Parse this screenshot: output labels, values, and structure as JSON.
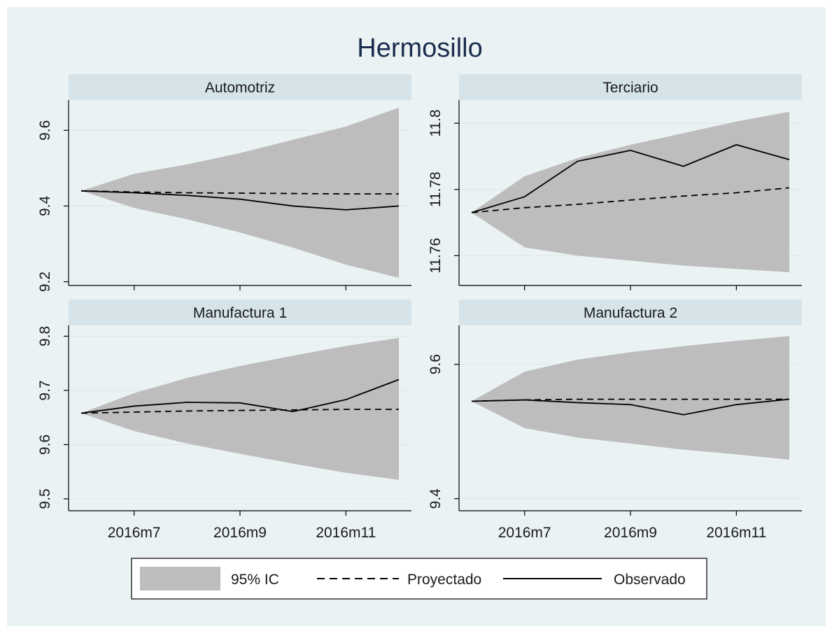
{
  "title": "Hermosillo",
  "colors": {
    "background": "#eaf2f3",
    "strip": "#d6e4ea",
    "band": "#bdbdbd",
    "grid": "#dfe7ea",
    "line": "#000000",
    "title": "#1a2d4f"
  },
  "chart_data": [
    {
      "type": "line",
      "panel": "Automotriz",
      "x": [
        "2016m6",
        "2016m7",
        "2016m8",
        "2016m9",
        "2016m10",
        "2016m11",
        "2016m12"
      ],
      "x_ticks": [
        "2016m7",
        "2016m9",
        "2016m11"
      ],
      "y_ticks": [
        "9.2",
        "9.4",
        "9.6"
      ],
      "ylim": [
        9.19,
        9.68
      ],
      "series": [
        {
          "name": "95% IC",
          "kind": "band",
          "lower": [
            9.44,
            9.395,
            9.365,
            9.33,
            9.29,
            9.245,
            9.21
          ],
          "upper": [
            9.44,
            9.485,
            9.51,
            9.54,
            9.575,
            9.61,
            9.66
          ]
        },
        {
          "name": "Proyectado",
          "kind": "dashed",
          "values": [
            9.44,
            9.437,
            9.435,
            9.434,
            9.433,
            9.432,
            9.432
          ]
        },
        {
          "name": "Observado",
          "kind": "solid",
          "values": [
            9.44,
            9.435,
            9.428,
            9.418,
            9.4,
            9.39,
            9.4
          ]
        }
      ]
    },
    {
      "type": "line",
      "panel": "Terciario",
      "x": [
        "2016m6",
        "2016m7",
        "2016m8",
        "2016m9",
        "2016m10",
        "2016m11",
        "2016m12"
      ],
      "x_ticks": [
        "2016m7",
        "2016m9",
        "2016m11"
      ],
      "y_ticks": [
        "11.76",
        "11.78",
        "11.8"
      ],
      "ylim": [
        11.751,
        11.807
      ],
      "series": [
        {
          "name": "95% IC",
          "kind": "band",
          "lower": [
            11.773,
            11.7625,
            11.76,
            11.7585,
            11.757,
            11.756,
            11.755
          ],
          "upper": [
            11.773,
            11.784,
            11.7895,
            11.7935,
            11.797,
            11.8005,
            11.8035
          ]
        },
        {
          "name": "Proyectado",
          "kind": "dashed",
          "values": [
            11.773,
            11.7745,
            11.7755,
            11.7768,
            11.778,
            11.779,
            11.7805
          ]
        },
        {
          "name": "Observado",
          "kind": "solid",
          "values": [
            11.773,
            11.7778,
            11.7885,
            11.7918,
            11.787,
            11.7935,
            11.789
          ]
        }
      ]
    },
    {
      "type": "line",
      "panel": "Manufactura 1",
      "x": [
        "2016m6",
        "2016m7",
        "2016m8",
        "2016m9",
        "2016m10",
        "2016m11",
        "2016m12"
      ],
      "x_ticks": [
        "2016m7",
        "2016m9",
        "2016m11"
      ],
      "y_ticks": [
        "9.5",
        "9.6",
        "9.7",
        "9.8"
      ],
      "ylim": [
        9.478,
        9.82
      ],
      "series": [
        {
          "name": "95% IC",
          "kind": "band",
          "lower": [
            9.658,
            9.625,
            9.602,
            9.583,
            9.565,
            9.548,
            9.535
          ],
          "upper": [
            9.658,
            9.695,
            9.723,
            9.745,
            9.764,
            9.782,
            9.797
          ]
        },
        {
          "name": "Proyectado",
          "kind": "dashed",
          "values": [
            9.658,
            9.66,
            9.662,
            9.663,
            9.664,
            9.665,
            9.665
          ]
        },
        {
          "name": "Observado",
          "kind": "solid",
          "values": [
            9.658,
            9.671,
            9.678,
            9.677,
            9.661,
            9.683,
            9.72
          ]
        }
      ]
    },
    {
      "type": "line",
      "panel": "Manufactura 2",
      "x": [
        "2016m6",
        "2016m7",
        "2016m8",
        "2016m9",
        "2016m10",
        "2016m11",
        "2016m12"
      ],
      "x_ticks": [
        "2016m7",
        "2016m9",
        "2016m11"
      ],
      "y_ticks": [
        "9.4",
        "9.6"
      ],
      "ylim": [
        9.382,
        9.658
      ],
      "series": [
        {
          "name": "95% IC",
          "kind": "band",
          "lower": [
            9.545,
            9.505,
            9.491,
            9.482,
            9.473,
            9.466,
            9.458
          ],
          "upper": [
            9.545,
            9.589,
            9.607,
            9.618,
            9.627,
            9.635,
            9.642
          ]
        },
        {
          "name": "Proyectado",
          "kind": "dashed",
          "values": [
            9.545,
            9.547,
            9.548,
            9.548,
            9.548,
            9.548,
            9.548
          ]
        },
        {
          "name": "Observado",
          "kind": "solid",
          "values": [
            9.545,
            9.547,
            9.543,
            9.54,
            9.525,
            9.54,
            9.548
          ]
        }
      ]
    }
  ],
  "legend": {
    "placement": "bottom",
    "items": [
      {
        "label": "95% IC",
        "kind": "band"
      },
      {
        "label": "Proyectado",
        "kind": "dashed"
      },
      {
        "label": "Observado",
        "kind": "solid"
      }
    ]
  }
}
